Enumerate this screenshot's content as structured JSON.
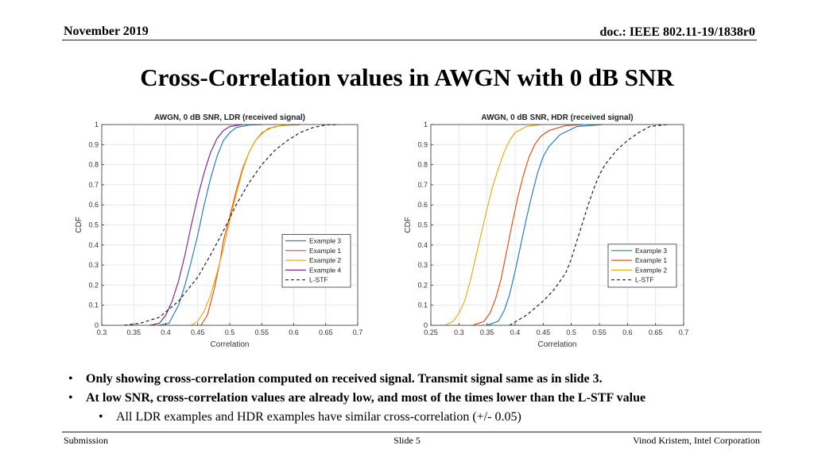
{
  "header": {
    "date": "November 2019",
    "doc": "doc.: IEEE 802.11-19/1838r0"
  },
  "title": "Cross-Correlation values in AWGN with 0 dB SNR",
  "bullets": [
    {
      "text": "Only showing cross-correlation computed on received signal. Transmit signal same as in slide 3.",
      "level": 1
    },
    {
      "text": "At low SNR, cross-correlation values are already low, and most of the times lower than the L-STF value",
      "level": 1
    },
    {
      "text": "All LDR examples and HDR examples have similar cross-correlation (+/- 0.05)",
      "level": 2
    }
  ],
  "footer": {
    "left": "Submission",
    "center": "Slide 5",
    "right": "Vinod Kristem, Intel Corporation"
  },
  "bullet_glyph": "•",
  "chart_data": [
    {
      "type": "line",
      "title": "AWGN, 0 dB SNR, LDR (received signal)",
      "xlabel": "Correlation",
      "ylabel": "CDF",
      "xlim": [
        0.3,
        0.7
      ],
      "ylim": [
        0,
        1
      ],
      "xticks": [
        "0.3",
        "0.35",
        "0.4",
        "0.45",
        "0.5",
        "0.55",
        "0.6",
        "0.65",
        "0.7"
      ],
      "yticks": [
        "0",
        "0.1",
        "0.2",
        "0.3",
        "0.4",
        "0.5",
        "0.6",
        "0.7",
        "0.8",
        "0.9",
        "1"
      ],
      "grid": true,
      "legend_position": "lower-right",
      "series": [
        {
          "name": "Example 3",
          "color": "#2a7fb8",
          "dashed": false,
          "x": [
            0.39,
            0.405,
            0.42,
            0.43,
            0.44,
            0.45,
            0.46,
            0.47,
            0.48,
            0.49,
            0.5,
            0.51,
            0.53,
            0.55
          ],
          "y": [
            0,
            0.01,
            0.1,
            0.2,
            0.32,
            0.45,
            0.6,
            0.73,
            0.84,
            0.92,
            0.96,
            0.985,
            0.998,
            1
          ]
        },
        {
          "name": "Example 1",
          "color": "#d9531e",
          "dashed": false,
          "x": [
            0.455,
            0.465,
            0.475,
            0.485,
            0.49,
            0.5,
            0.51,
            0.52,
            0.53,
            0.54,
            0.55,
            0.56,
            0.58,
            0.61
          ],
          "y": [
            0,
            0.05,
            0.17,
            0.32,
            0.42,
            0.54,
            0.67,
            0.78,
            0.86,
            0.92,
            0.955,
            0.98,
            0.995,
            1
          ]
        },
        {
          "name": "Example 2",
          "color": "#e0b020",
          "dashed": false,
          "x": [
            0.44,
            0.45,
            0.46,
            0.47,
            0.48,
            0.49,
            0.5,
            0.51,
            0.52,
            0.53,
            0.54,
            0.55,
            0.57,
            0.6
          ],
          "y": [
            0,
            0.02,
            0.07,
            0.15,
            0.26,
            0.38,
            0.52,
            0.65,
            0.77,
            0.86,
            0.92,
            0.96,
            0.99,
            1
          ]
        },
        {
          "name": "Example 4",
          "color": "#7e2f8e",
          "dashed": false,
          "x": [
            0.375,
            0.39,
            0.4,
            0.41,
            0.42,
            0.43,
            0.44,
            0.45,
            0.46,
            0.47,
            0.48,
            0.49,
            0.5,
            0.52
          ],
          "y": [
            0,
            0.01,
            0.05,
            0.12,
            0.22,
            0.35,
            0.5,
            0.64,
            0.76,
            0.86,
            0.93,
            0.97,
            0.99,
            1
          ]
        },
        {
          "name": "L-STF",
          "color": "#222222",
          "dashed": true,
          "x": [
            0.335,
            0.36,
            0.39,
            0.42,
            0.45,
            0.47,
            0.49,
            0.51,
            0.53,
            0.55,
            0.57,
            0.59,
            0.61,
            0.63,
            0.65,
            0.67
          ],
          "y": [
            0,
            0.01,
            0.04,
            0.12,
            0.24,
            0.35,
            0.47,
            0.6,
            0.71,
            0.8,
            0.87,
            0.92,
            0.96,
            0.985,
            0.998,
            1
          ]
        }
      ]
    },
    {
      "type": "line",
      "title": "AWGN,   0 dB SNR, HDR (received signal)",
      "xlabel": "Correlation",
      "ylabel": "CDF",
      "xlim": [
        0.25,
        0.7
      ],
      "ylim": [
        0,
        1
      ],
      "xticks": [
        "0.25",
        "0.3",
        "0.35",
        "0.4",
        "0.45",
        "0.5",
        "0.55",
        "0.6",
        "0.65",
        "0.7"
      ],
      "yticks": [
        "0",
        "0.1",
        "0.2",
        "0.3",
        "0.4",
        "0.5",
        "0.6",
        "0.7",
        "0.8",
        "0.9",
        "1"
      ],
      "grid": true,
      "legend_position": "lower-right",
      "series": [
        {
          "name": "Example 3",
          "color": "#2a7fb8",
          "dashed": false,
          "x": [
            0.35,
            0.37,
            0.38,
            0.39,
            0.4,
            0.41,
            0.42,
            0.43,
            0.44,
            0.45,
            0.46,
            0.48,
            0.51,
            0.555
          ],
          "y": [
            0,
            0.02,
            0.07,
            0.15,
            0.27,
            0.4,
            0.53,
            0.65,
            0.76,
            0.84,
            0.89,
            0.95,
            0.99,
            1
          ]
        },
        {
          "name": "Example 1",
          "color": "#d9531e",
          "dashed": false,
          "x": [
            0.325,
            0.345,
            0.355,
            0.365,
            0.375,
            0.385,
            0.395,
            0.405,
            0.415,
            0.425,
            0.435,
            0.445,
            0.46,
            0.49,
            0.52
          ],
          "y": [
            0,
            0.02,
            0.06,
            0.13,
            0.23,
            0.37,
            0.51,
            0.64,
            0.75,
            0.84,
            0.9,
            0.94,
            0.97,
            0.995,
            1
          ]
        },
        {
          "name": "Example 2",
          "color": "#e0b020",
          "dashed": false,
          "x": [
            0.275,
            0.29,
            0.3,
            0.31,
            0.32,
            0.33,
            0.34,
            0.35,
            0.36,
            0.37,
            0.38,
            0.39,
            0.4,
            0.42,
            0.445
          ],
          "y": [
            0,
            0.02,
            0.06,
            0.12,
            0.22,
            0.34,
            0.46,
            0.58,
            0.69,
            0.78,
            0.86,
            0.92,
            0.96,
            0.99,
            1
          ]
        },
        {
          "name": "L-STF",
          "color": "#222222",
          "dashed": true,
          "x": [
            0.39,
            0.42,
            0.45,
            0.47,
            0.49,
            0.5,
            0.51,
            0.52,
            0.53,
            0.54,
            0.55,
            0.56,
            0.58,
            0.6,
            0.62,
            0.64,
            0.67
          ],
          "y": [
            0,
            0.05,
            0.12,
            0.18,
            0.26,
            0.33,
            0.42,
            0.51,
            0.6,
            0.68,
            0.75,
            0.8,
            0.87,
            0.92,
            0.96,
            0.99,
            1
          ]
        }
      ]
    }
  ]
}
